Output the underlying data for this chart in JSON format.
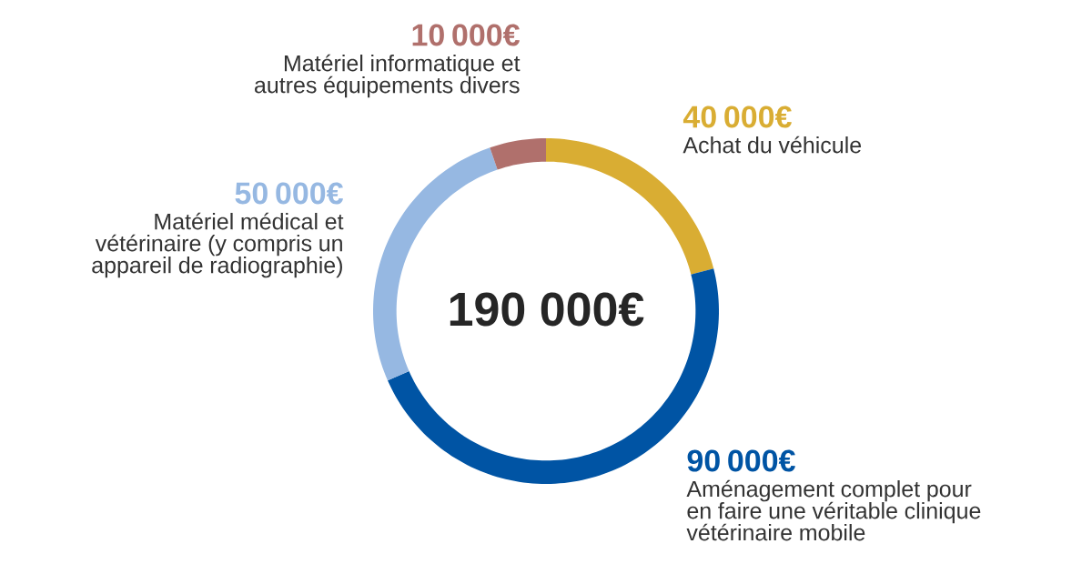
{
  "chart_data": {
    "type": "donut",
    "categories": [
      "Achat du véhicule",
      "Aménagement complet pour en faire une véritable clinique vétérinaire mobile",
      "Matériel médical et vétérinaire (y compris un appareil de radiographie)",
      "Matériel informatique et autres équipements divers"
    ],
    "values": [
      40000,
      90000,
      50000,
      10000
    ],
    "colors": [
      "#d9ad33",
      "#0054a4",
      "#96b8e2",
      "#b0706c"
    ],
    "value_labels": [
      "40 000€",
      "90 000€",
      "50 000€",
      "10 000€"
    ],
    "annotations": [
      "190 000€"
    ]
  }
}
